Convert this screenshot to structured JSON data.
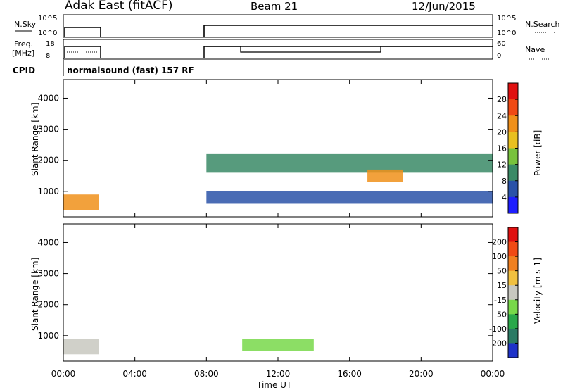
{
  "header": {
    "site": "Adak East (fitACF)",
    "beam": "Beam 21",
    "date": "12/Jun/2015"
  },
  "top_panels": {
    "nsky": {
      "label": "N.Sky",
      "ticks": [
        "10^5",
        "10^0"
      ]
    },
    "nsearch": {
      "label": "N.Search",
      "ticks": [
        "10^5",
        "10^0"
      ]
    },
    "freq": {
      "label_line1": "Freq.",
      "label_line2": "[MHz]",
      "ticks": [
        "18",
        "8"
      ]
    },
    "nave": {
      "label": "Nave",
      "ticks": [
        "60",
        "0"
      ]
    },
    "cpid": {
      "label": "CPID",
      "text": "normalsound (fast) 157 RF"
    }
  },
  "colors": {
    "no_data": "#ffffff",
    "axis": "#000000"
  },
  "chart_data": [
    {
      "type": "heatmap",
      "title": "",
      "xlabel": "",
      "ylabel": "Slant Range [km]",
      "xlim": [
        "00:00",
        "24:00"
      ],
      "ylim": [
        180,
        4600
      ],
      "x_ticks": [
        "00:00",
        "04:00",
        "08:00",
        "12:00",
        "16:00",
        "20:00",
        "00:00"
      ],
      "y_ticks": [
        "1000",
        "2000",
        "3000",
        "4000"
      ],
      "colorbar": {
        "label": "Power [dB]",
        "ticks": [
          "4",
          "8",
          "12",
          "16",
          "20",
          "24",
          "28"
        ],
        "range": [
          0,
          30
        ],
        "colors": [
          "#1e1eff",
          "#2a52a8",
          "#3a8a66",
          "#78c23c",
          "#e8c020",
          "#f0901a",
          "#f04a14",
          "#e01010"
        ]
      },
      "data_gap_hours": [
        [
          2.0,
          8.0
        ]
      ],
      "echo_regions": [
        {
          "name": "near-range echoes 00-02 UT",
          "t_start_hr": 0.0,
          "t_end_hr": 2.0,
          "range_km": [
            400,
            900
          ],
          "power_db": 22
        },
        {
          "name": "band 1600-2200 km",
          "t_start_hr": 8.0,
          "t_end_hr": 24.0,
          "range_km": [
            1600,
            2200
          ],
          "power_db": 8
        },
        {
          "name": "band 600-1000 km",
          "t_start_hr": 8.0,
          "t_end_hr": 24.0,
          "range_km": [
            600,
            1000
          ],
          "power_db": 6
        },
        {
          "name": "strong band 17-19 UT",
          "t_start_hr": 17.0,
          "t_end_hr": 19.0,
          "range_km": [
            1300,
            1700
          ],
          "power_db": 20
        }
      ]
    },
    {
      "type": "heatmap",
      "title": "",
      "xlabel": "Time UT",
      "ylabel": "Slant Range [km]",
      "xlim": [
        "00:00",
        "24:00"
      ],
      "ylim": [
        180,
        4600
      ],
      "x_ticks": [
        "00:00",
        "04:00",
        "08:00",
        "12:00",
        "16:00",
        "20:00",
        "00:00"
      ],
      "y_ticks": [
        "1000",
        "2000",
        "3000",
        "4000"
      ],
      "colorbar": {
        "label": "Velocity [m s-1]",
        "ticks": [
          "200",
          "100",
          "50",
          "15",
          "-15",
          "-50",
          "-100",
          "-200"
        ],
        "range": [
          -250,
          250
        ],
        "colors": [
          "#1e32c8",
          "#2a7a64",
          "#2aa84a",
          "#78d84a",
          "#c8c8c0",
          "#f0c040",
          "#f08020",
          "#f04a14",
          "#e01010"
        ]
      },
      "data_gap_hours": [
        [
          2.0,
          8.0
        ]
      ],
      "echo_regions": [
        {
          "name": "ground scatter 00-02 UT",
          "t_start_hr": 0.0,
          "t_end_hr": 2.0,
          "range_km": [
            400,
            900
          ],
          "velocity_ms": 0
        },
        {
          "name": "green echoes 10-14 UT",
          "t_start_hr": 10.0,
          "t_end_hr": 14.0,
          "range_km": [
            500,
            900
          ],
          "velocity_ms": 40
        }
      ]
    }
  ]
}
